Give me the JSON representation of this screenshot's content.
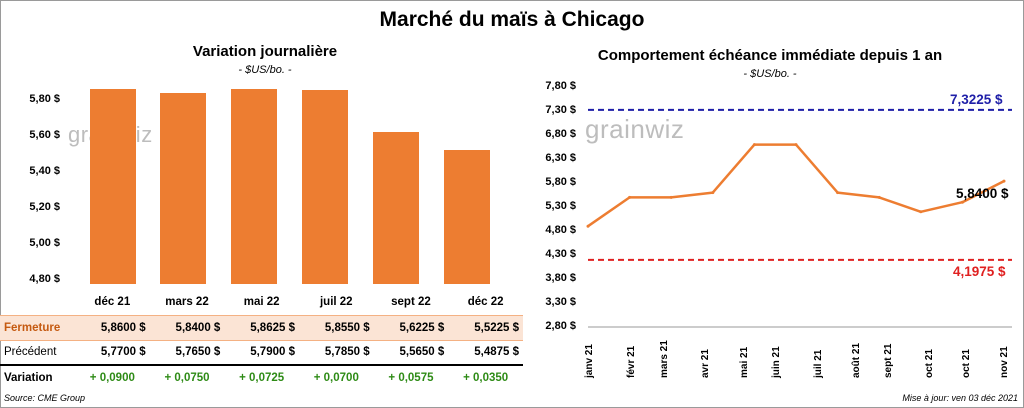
{
  "main_title": "Marché du maïs à Chicago",
  "watermark": "grainwiz",
  "left_panel": {
    "title": "Variation  journalière",
    "subtitle": "- $US/bo. -",
    "yticks": [
      "5,80 $",
      "5,60 $",
      "5,40 $",
      "5,20 $",
      "5,00 $",
      "4,80 $"
    ],
    "table": {
      "months": [
        "déc 21",
        "mars 22",
        "mai 22",
        "juil 22",
        "sept 22",
        "déc 22"
      ],
      "fermeture_label": "Fermeture",
      "fermeture": [
        "5,8600  $",
        "5,8400  $",
        "5,8625  $",
        "5,8550  $",
        "5,6225  $",
        "5,5225  $"
      ],
      "precedent_label": "Précédent",
      "precedent": [
        "5,7700  $",
        "5,7650  $",
        "5,7900  $",
        "5,7850  $",
        "5,5650  $",
        "5,4875  $"
      ],
      "variation_label": "Variation",
      "variation": [
        "+ 0,0900",
        "+ 0,0750",
        "+ 0,0725",
        "+ 0,0700",
        "+ 0,0575",
        "+ 0,0350"
      ]
    }
  },
  "right_panel": {
    "title": "Comportement  échéance immédiate depuis 1 an",
    "subtitle": "- $US/bo. -",
    "yticks": [
      "7,80 $",
      "7,30 $",
      "6,80 $",
      "6,30 $",
      "5,80 $",
      "5,30 $",
      "4,80 $",
      "4,30 $",
      "3,80 $",
      "3,30 $",
      "2,80 $"
    ],
    "xticks": [
      "janv 21",
      "févr 21",
      "mars 21",
      "avr 21",
      "mai 21",
      "juin 21",
      "juil 21",
      "août 21",
      "sept 21",
      "oct 21",
      "oct 21",
      "nov 21"
    ],
    "high_label": "7,3225 $",
    "low_label": "4,1975 $",
    "last_label": "5,8400 $"
  },
  "chart_data": [
    {
      "type": "bar",
      "title": "Variation  journalière",
      "subtitle": "- $US/bo. -",
      "categories": [
        "déc 21",
        "mars 22",
        "mai 22",
        "juil 22",
        "sept 22",
        "déc 22"
      ],
      "values": [
        5.86,
        5.84,
        5.8625,
        5.855,
        5.6225,
        5.5225
      ],
      "ylim": [
        4.8,
        5.9
      ],
      "color": "#ED7D31"
    },
    {
      "type": "line",
      "title": "Comportement  échéance immédiate depuis 1 an",
      "subtitle": "- $US/bo. -",
      "ylim": [
        2.8,
        7.8
      ],
      "color": "#ED7D31",
      "reference_lines": [
        {
          "value": 7.3225,
          "color": "#1F1FA8",
          "style": "dashed"
        },
        {
          "value": 4.1975,
          "color": "#E02020",
          "style": "dashed"
        }
      ],
      "x": [
        "janv 21",
        "févr 21",
        "mars 21",
        "avr 21",
        "mai 21",
        "juin 21",
        "juil 21",
        "août 21",
        "sept 21",
        "oct 21",
        "nov 21"
      ],
      "y": [
        4.9,
        5.5,
        5.5,
        5.6,
        6.6,
        6.6,
        5.6,
        5.5,
        5.2,
        5.4,
        5.84
      ]
    }
  ],
  "footer": {
    "source": "Source: CME Group",
    "update": "Mise à jour: ven 03 déc 2021"
  }
}
